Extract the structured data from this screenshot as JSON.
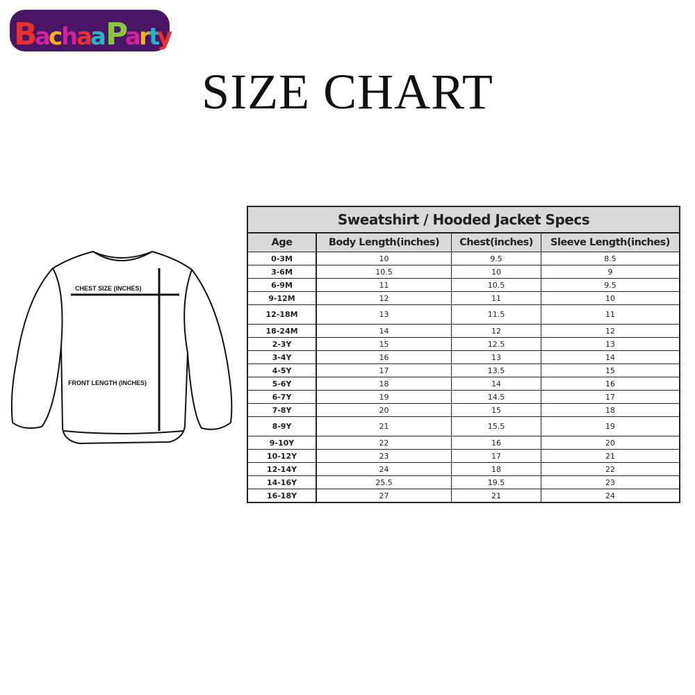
{
  "brand": {
    "logo_text": "BachaaParty",
    "colors": [
      "#e8312f",
      "#d1219b",
      "#f4b11c",
      "#26b6c9",
      "#8cc63f",
      "#4b1565"
    ]
  },
  "page_title": "SIZE CHART",
  "diagram": {
    "chest_label": "CHEST SIZE (INCHES)",
    "length_label": "FRONT LENGTH (INCHES)"
  },
  "table": {
    "title": "Sweatshirt / Hooded Jacket Specs",
    "columns": [
      "Age",
      "Body Length(inches)",
      "Chest(inches)",
      "Sleeve Length(inches)"
    ],
    "rows": [
      [
        "0-3M",
        "10",
        "9.5",
        "8.5"
      ],
      [
        "3-6M",
        "10.5",
        "10",
        "9"
      ],
      [
        "6-9M",
        "11",
        "10.5",
        "9.5"
      ],
      [
        "9-12M",
        "12",
        "11",
        "10"
      ],
      [
        "12-18M",
        "13",
        "11.5",
        "11"
      ],
      [
        "18-24M",
        "14",
        "12",
        "12"
      ],
      [
        "2-3Y",
        "15",
        "12.5",
        "13"
      ],
      [
        "3-4Y",
        "16",
        "13",
        "14"
      ],
      [
        "4-5Y",
        "17",
        "13.5",
        "15"
      ],
      [
        "5-6Y",
        "18",
        "14",
        "16"
      ],
      [
        "6-7Y",
        "19",
        "14.5",
        "17"
      ],
      [
        "7-8Y",
        "20",
        "15",
        "18"
      ],
      [
        "8-9Y",
        "21",
        "15.5",
        "19"
      ],
      [
        "9-10Y",
        "22",
        "16",
        "20"
      ],
      [
        "10-12Y",
        "23",
        "17",
        "21"
      ],
      [
        "12-14Y",
        "24",
        "18",
        "22"
      ],
      [
        "14-16Y",
        "25.5",
        "19.5",
        "23"
      ],
      [
        "16-18Y",
        "27",
        "21",
        "24"
      ]
    ]
  }
}
